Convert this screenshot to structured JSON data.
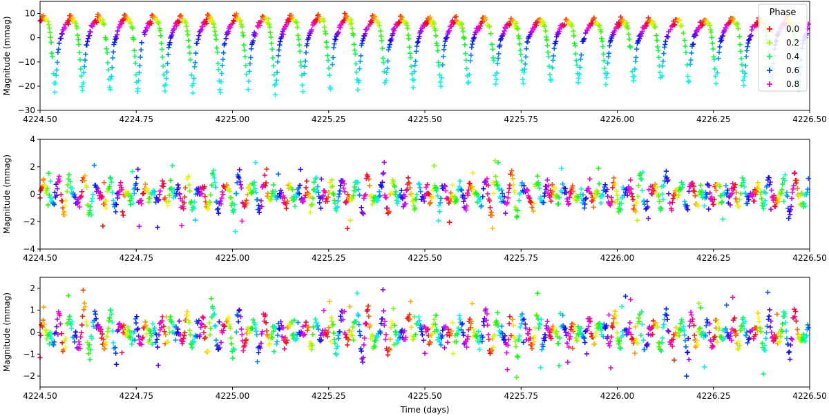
{
  "chart_data": {
    "type": "scatter",
    "marker": "+",
    "x_range": [
      4224.5,
      4226.5
    ],
    "x_ticks": [
      "4224.50",
      "4224.75",
      "4225.00",
      "4225.25",
      "4225.50",
      "4225.75",
      "4226.00",
      "4226.25",
      "4226.50"
    ],
    "xlabel": "Time (days)",
    "color_by": "phase",
    "period_days": 0.0716,
    "legend": {
      "title": "Phase",
      "placement": "top-right",
      "entries": [
        {
          "label": "0.0",
          "color": "#ff0000"
        },
        {
          "label": "0.2",
          "color": "#99ff00"
        },
        {
          "label": "0.4",
          "color": "#00ff66"
        },
        {
          "label": "0.6",
          "color": "#0033ff"
        },
        {
          "label": "0.8",
          "color": "#ff00cc"
        }
      ]
    },
    "panels": [
      {
        "ylabel": "Magnitude (mmag)",
        "ylim": [
          -30,
          15
        ],
        "y_ticks": [
          "10",
          "0",
          "−10",
          "−20",
          "−30"
        ],
        "approx_range": [
          -28,
          10
        ],
        "description_values": {
          "max_mmag": 10,
          "min_mmag": -28
        }
      },
      {
        "ylabel": "Magnitude (mmag)",
        "ylim": [
          -4,
          4
        ],
        "y_ticks": [
          "4",
          "2",
          "0",
          "−2",
          "−4"
        ],
        "approx_range": [
          -3.4,
          3.5
        ]
      },
      {
        "ylabel": "Magnitude (mmag)",
        "ylim": [
          -2.5,
          2.5
        ],
        "y_ticks": [
          "2",
          "1",
          "0",
          "−1",
          "−2"
        ],
        "approx_range": [
          -2.3,
          2.3
        ]
      }
    ]
  }
}
